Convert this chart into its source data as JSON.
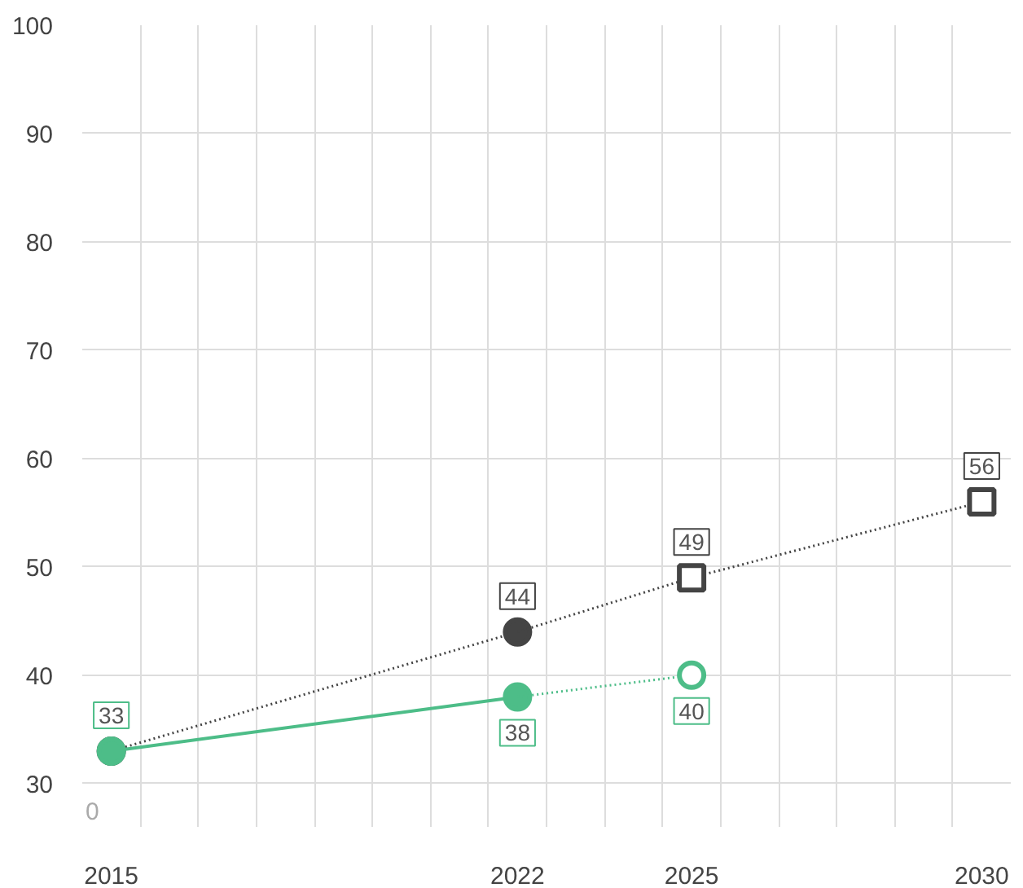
{
  "chart_data": {
    "type": "line",
    "xlim": [
      2014.5,
      2030.5
    ],
    "ylim": [
      26,
      100
    ],
    "xticks": [
      2015,
      2022,
      2025,
      2030
    ],
    "yticks": [
      30,
      40,
      50,
      60,
      70,
      80,
      90,
      100
    ],
    "annotations": [
      "0"
    ],
    "grid": true,
    "series": [
      {
        "color": "#444444",
        "line_style": "dotted",
        "marker": "circle",
        "x": [
          2015,
          2022
        ],
        "values": [
          33,
          44
        ],
        "value_labels": [
          null,
          "44"
        ]
      },
      {
        "color": "#444444",
        "line_style": "dotted",
        "marker": "none",
        "x": [
          2022,
          2025,
          2030
        ],
        "values": [
          44,
          49,
          56
        ],
        "value_labels": [
          null,
          "49",
          "56"
        ]
      },
      {
        "type": "scatter",
        "color": "#444444",
        "marker": "square",
        "x": [
          2025,
          2030
        ],
        "values": [
          49,
          56
        ]
      },
      {
        "color": "#4dbd88",
        "line_style": "solid",
        "marker": "circle",
        "x": [
          2015,
          2022
        ],
        "values": [
          33,
          38
        ],
        "value_labels": [
          "33",
          "38"
        ]
      },
      {
        "color": "#4dbd88",
        "line_style": "dotted",
        "marker": "none",
        "x": [
          2022,
          2025
        ],
        "values": [
          38,
          40
        ],
        "value_labels": [
          null,
          "40"
        ]
      },
      {
        "type": "scatter",
        "color": "#4dbd88",
        "marker": "circle",
        "x": [
          2025
        ],
        "values": [
          40
        ]
      }
    ]
  }
}
